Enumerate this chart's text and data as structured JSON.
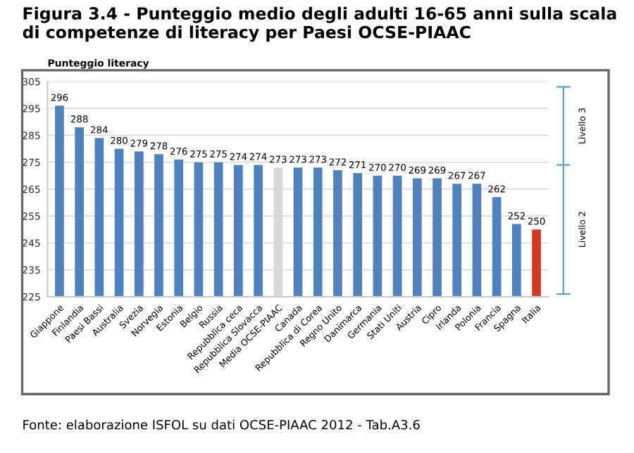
{
  "chart_data": {
    "type": "bar",
    "title": "Figura 3.4 - Punteggio medio degli adulti 16-65 anni sulla scala di competenze di literacy per Paesi OCSE-PIAAC",
    "ylabel": "Punteggio literacy",
    "categories": [
      "Giappone",
      "Finlandia",
      "Paesi Bassi",
      "Australia",
      "Svezia",
      "Norvegia",
      "Estonia",
      "Belgio",
      "Russia",
      "Repubblica ceca",
      "Repubblica Slovacca",
      "Media OCSE-PIAAC",
      "Canada",
      "Repubblica di Corea",
      "Regno Unito",
      "Danimarca",
      "Germania",
      "Stati Uniti",
      "Austria",
      "Cipro",
      "Irlanda",
      "Polonia",
      "Francia",
      "Spagna",
      "Italia"
    ],
    "values": [
      296,
      288,
      284,
      280,
      279,
      278,
      276,
      275,
      275,
      274,
      274,
      273,
      273,
      273,
      272,
      271,
      270,
      270,
      269,
      269,
      267,
      267,
      262,
      252,
      250
    ],
    "colors": [
      "#4f81bd",
      "#4f81bd",
      "#4f81bd",
      "#4f81bd",
      "#4f81bd",
      "#4f81bd",
      "#4f81bd",
      "#4f81bd",
      "#4f81bd",
      "#4f81bd",
      "#4f81bd",
      "#d9d9d9",
      "#4f81bd",
      "#4f81bd",
      "#4f81bd",
      "#4f81bd",
      "#4f81bd",
      "#4f81bd",
      "#4f81bd",
      "#4f81bd",
      "#4f81bd",
      "#4f81bd",
      "#4f81bd",
      "#4f81bd",
      "#d03a22"
    ],
    "data_labels": true,
    "ylim": [
      225,
      305
    ],
    "yticks": [
      225,
      235,
      245,
      255,
      265,
      275,
      285,
      295,
      305
    ],
    "grid": "y",
    "annotations": [
      "Livello 3",
      "Livello 2",
      "Fonte: elaborazione ISFOL su dati OCSE-PIAAC 2012 - Tab.A3.6"
    ]
  }
}
